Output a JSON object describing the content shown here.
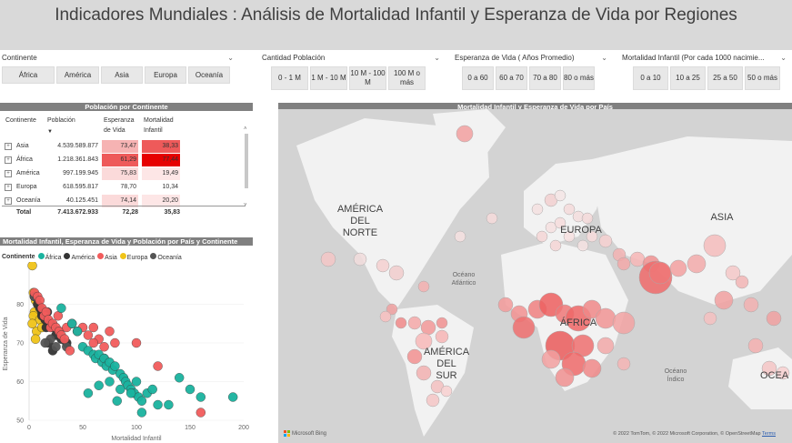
{
  "header": {
    "title": "Indicadores Mundiales :  Análisis de Mortalidad Infantil y Esperanza de Vida por Regiones"
  },
  "slicers": {
    "continente": {
      "title": "Continente",
      "options": [
        "África",
        "América",
        "Asia",
        "Europa",
        "Oceanía"
      ]
    },
    "poblacion": {
      "title": "Cantidad Población",
      "options": [
        "0 - 1 M",
        "1 M - 10 M",
        "10 M - 100 M",
        "100 M o más"
      ]
    },
    "esperanza": {
      "title": "Esperanza de Vida ( Años Promedio)",
      "options": [
        "0 a 60",
        "60 a 70",
        "70 a 80",
        "80 o más"
      ]
    },
    "mortalidad": {
      "title": "Mortalidad Infantil (Por cada 1000 nacimie...",
      "options": [
        "0 a 10",
        "10 a 25",
        "25 a 50",
        "50 o más"
      ]
    }
  },
  "table": {
    "title": "Población por Continente",
    "headers": {
      "continente": "Continente",
      "poblacion": "Población",
      "esperanza": "Esperanza de Vida",
      "mortalidad": "Mortalidad Infantil"
    },
    "rows": [
      {
        "continente": "Asia",
        "poblacion": "4.539.589.877",
        "esperanza": "73,47",
        "mortalidad": "38,33",
        "esp_color": "#f6b3b3",
        "mort_color": "#ee5a5a"
      },
      {
        "continente": "África",
        "poblacion": "1.218.361.843",
        "esperanza": "61,29",
        "mortalidad": "77,44",
        "esp_color": "#ee5a5a",
        "mort_color": "#e60000"
      },
      {
        "continente": "América",
        "poblacion": "997.199.945",
        "esperanza": "75,83",
        "mortalidad": "19,49",
        "esp_color": "#fbdada",
        "mort_color": "#fde6e6"
      },
      {
        "continente": "Europa",
        "poblacion": "618.595.817",
        "esperanza": "78,70",
        "mortalidad": "10,34",
        "esp_color": "#ffffff",
        "mort_color": "#ffffff"
      },
      {
        "continente": "Oceanía",
        "poblacion": "40.125.451",
        "esperanza": "74,14",
        "mortalidad": "20,20",
        "esp_color": "#fbdada",
        "mort_color": "#fde6e6"
      }
    ],
    "total": {
      "label": "Total",
      "poblacion": "7.413.672.933",
      "esperanza": "72,28",
      "mortalidad": "35,83"
    }
  },
  "scatter": {
    "title": "Mortalidad Infantil, Esperanza de Vida y Población por País y Continente",
    "legend_title": "Continente",
    "legend": [
      {
        "name": "África",
        "color": "#1ab39f"
      },
      {
        "name": "América",
        "color": "#333333"
      },
      {
        "name": "Asia",
        "color": "#f25c5c"
      },
      {
        "name": "Europa",
        "color": "#f0c419"
      },
      {
        "name": "Oceanía",
        "color": "#555555"
      }
    ],
    "xlabel": "Mortalidad Infantil",
    "ylabel": "Esperanza de Vida",
    "x_ticks": [
      "0",
      "50",
      "100",
      "150",
      "200"
    ],
    "y_ticks": [
      "50",
      "60",
      "70",
      "80"
    ]
  },
  "chart_data": {
    "type": "scatter",
    "title": "Mortalidad Infantil, Esperanza de Vida y Población por País y Continente",
    "xlabel": "Mortalidad Infantil",
    "ylabel": "Esperanza de Vida",
    "xlim": [
      0,
      200
    ],
    "ylim": [
      50,
      90
    ],
    "series": [
      {
        "name": "Europa",
        "color": "#f0c419",
        "x": [
          3,
          4,
          5,
          6,
          8,
          5,
          4,
          10,
          7,
          3,
          12,
          6
        ],
        "y": [
          90,
          83,
          82,
          81,
          80,
          78,
          77,
          76,
          73,
          75,
          74,
          71
        ]
      },
      {
        "name": "América",
        "color": "#333333",
        "x": [
          5,
          8,
          10,
          12,
          14,
          15,
          17,
          20,
          22,
          25,
          18,
          28,
          30,
          12,
          16,
          35,
          22
        ],
        "y": [
          82,
          80,
          79,
          78,
          77,
          76,
          78,
          75,
          74,
          72,
          70,
          73,
          71,
          77,
          74,
          70,
          68
        ]
      },
      {
        "name": "Oceanía",
        "color": "#555555",
        "x": [
          5,
          20,
          25,
          35,
          15
        ],
        "y": [
          82,
          71,
          69,
          69,
          70
        ]
      },
      {
        "name": "Asia",
        "color": "#f25c5c",
        "x": [
          5,
          8,
          10,
          12,
          14,
          16,
          18,
          20,
          22,
          25,
          28,
          30,
          35,
          40,
          45,
          50,
          55,
          60,
          65,
          70,
          75,
          80,
          60,
          70,
          100,
          120,
          160,
          27,
          33,
          38
        ],
        "y": [
          83,
          82,
          81,
          79,
          77,
          78,
          76,
          74,
          75,
          74,
          73,
          72,
          74,
          75,
          73,
          74,
          72,
          74,
          71,
          69,
          73,
          70,
          70,
          66,
          70,
          64,
          52,
          77,
          71,
          68
        ]
      },
      {
        "name": "África",
        "color": "#1ab39f",
        "x": [
          30,
          40,
          45,
          50,
          55,
          60,
          62,
          65,
          68,
          70,
          72,
          75,
          78,
          80,
          85,
          88,
          90,
          92,
          95,
          98,
          100,
          102,
          105,
          110,
          115,
          120,
          130,
          140,
          150,
          160,
          190,
          55,
          65,
          85,
          95,
          105,
          75,
          82
        ],
        "y": [
          79,
          75,
          73,
          69,
          68,
          67,
          66,
          67,
          65,
          66,
          64,
          65,
          63,
          64,
          62,
          61,
          60,
          59,
          58,
          57,
          60,
          56,
          55,
          57,
          58,
          54,
          54,
          61,
          58,
          56,
          56,
          57,
          59,
          58,
          57,
          52,
          60,
          55
        ]
      }
    ]
  },
  "map": {
    "title": "Mortalidad Infantil y Esperanza de Vida por País",
    "labels": {
      "north_america": "AMÉRICA DEL NORTE",
      "europe": "EUROPA",
      "asia": "ASIA",
      "africa": "ÁFRICA",
      "south_america": "AMÉRICA DEL SUR",
      "atlantic": "Océano Atlántico",
      "indian": "Océano Índico",
      "oceania": "OCEA"
    },
    "brand": "Microsoft Bing",
    "copyright": "© 2022 TomTom, © 2022 Microsoft Corporation, © OpenStreetMap",
    "terms": "Terms"
  }
}
